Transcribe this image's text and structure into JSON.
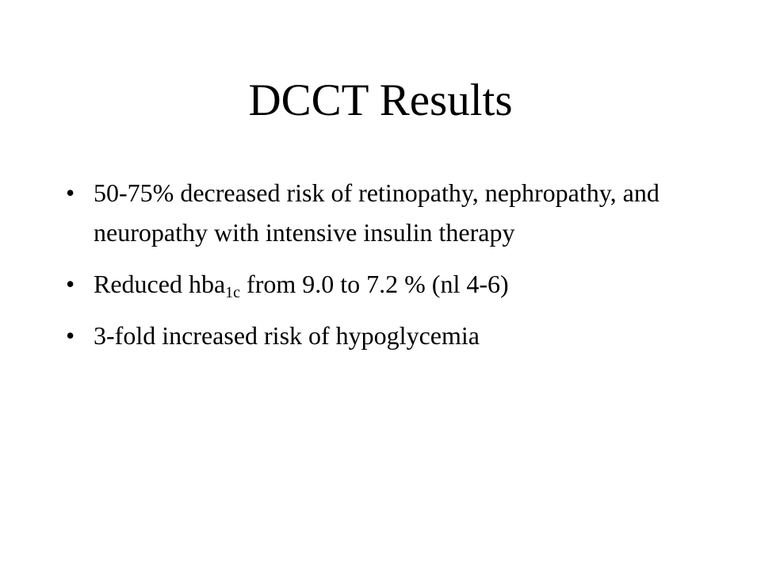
{
  "title": "DCCT Results",
  "bullets": [
    {
      "parts": [
        "50-75% decreased risk of retinopathy, nephropathy, and neuropathy with intensive insulin therapy"
      ]
    },
    {
      "parts": [
        "Reduced hba",
        "1c",
        " from 9.0 to 7.2 % (nl 4-6)"
      ]
    },
    {
      "parts": [
        "3-fold increased risk of hypoglycemia"
      ]
    }
  ]
}
